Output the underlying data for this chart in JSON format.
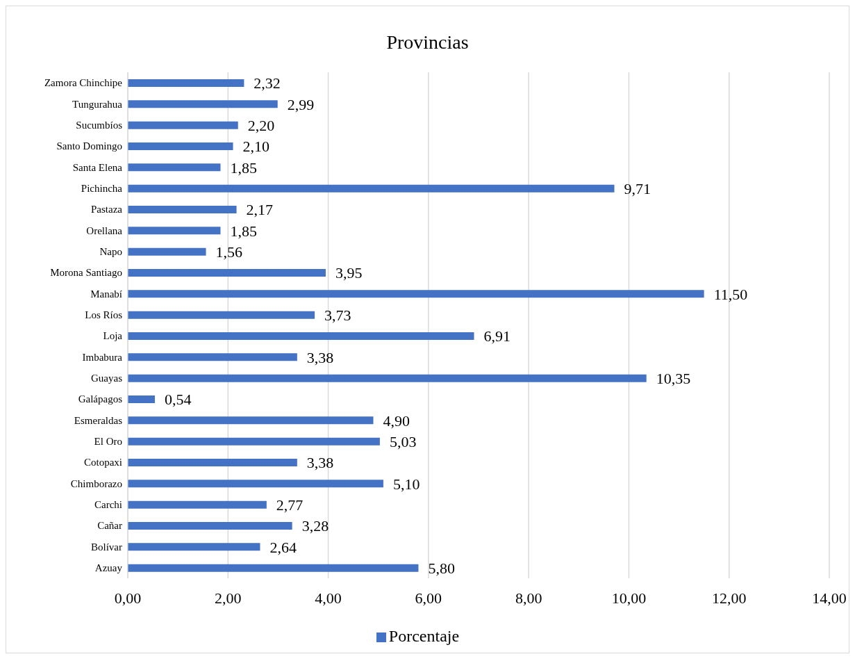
{
  "chart_data": {
    "type": "bar",
    "orientation": "horizontal",
    "title": "Provincias",
    "categories": [
      "Zamora Chinchipe",
      "Tungurahua",
      "Sucumbíos",
      "Santo Domingo",
      "Santa Elena",
      "Pichincha",
      "Pastaza",
      "Orellana",
      "Napo",
      "Morona Santiago",
      "Manabí",
      "Los Ríos",
      "Loja",
      "Imbabura",
      "Guayas",
      "Galápagos",
      "Esmeraldas",
      "El Oro",
      "Cotopaxi",
      "Chimborazo",
      "Carchi",
      "Cañar",
      "Bolívar",
      "Azuay"
    ],
    "series": [
      {
        "name": "Porcentaje",
        "color": "#4472c4",
        "values": [
          2.32,
          2.99,
          2.2,
          2.1,
          1.85,
          9.71,
          2.17,
          1.85,
          1.56,
          3.95,
          11.5,
          3.73,
          6.91,
          3.38,
          10.35,
          0.54,
          4.9,
          5.03,
          3.38,
          5.1,
          2.77,
          3.28,
          2.64,
          5.8
        ],
        "value_labels": [
          "2,32",
          "2,99",
          "2,20",
          "2,10",
          "1,85",
          "9,71",
          "2,17",
          "1,85",
          "1,56",
          "3,95",
          "11,50",
          "3,73",
          "6,91",
          "3,38",
          "10,35",
          "0,54",
          "4,90",
          "5,03",
          "3,38",
          "5,10",
          "2,77",
          "3,28",
          "2,64",
          "5,80"
        ]
      }
    ],
    "xlim": [
      0,
      14
    ],
    "xticks": [
      {
        "value": 0,
        "label": "0,00"
      },
      {
        "value": 2,
        "label": "2,00"
      },
      {
        "value": 4,
        "label": "4,00"
      },
      {
        "value": 6,
        "label": "6,00"
      },
      {
        "value": 8,
        "label": "8,00"
      },
      {
        "value": 10,
        "label": "10,00"
      },
      {
        "value": 12,
        "label": "12,00"
      },
      {
        "value": 14,
        "label": "14,00"
      }
    ],
    "grid": "x",
    "legend": "bottom"
  }
}
